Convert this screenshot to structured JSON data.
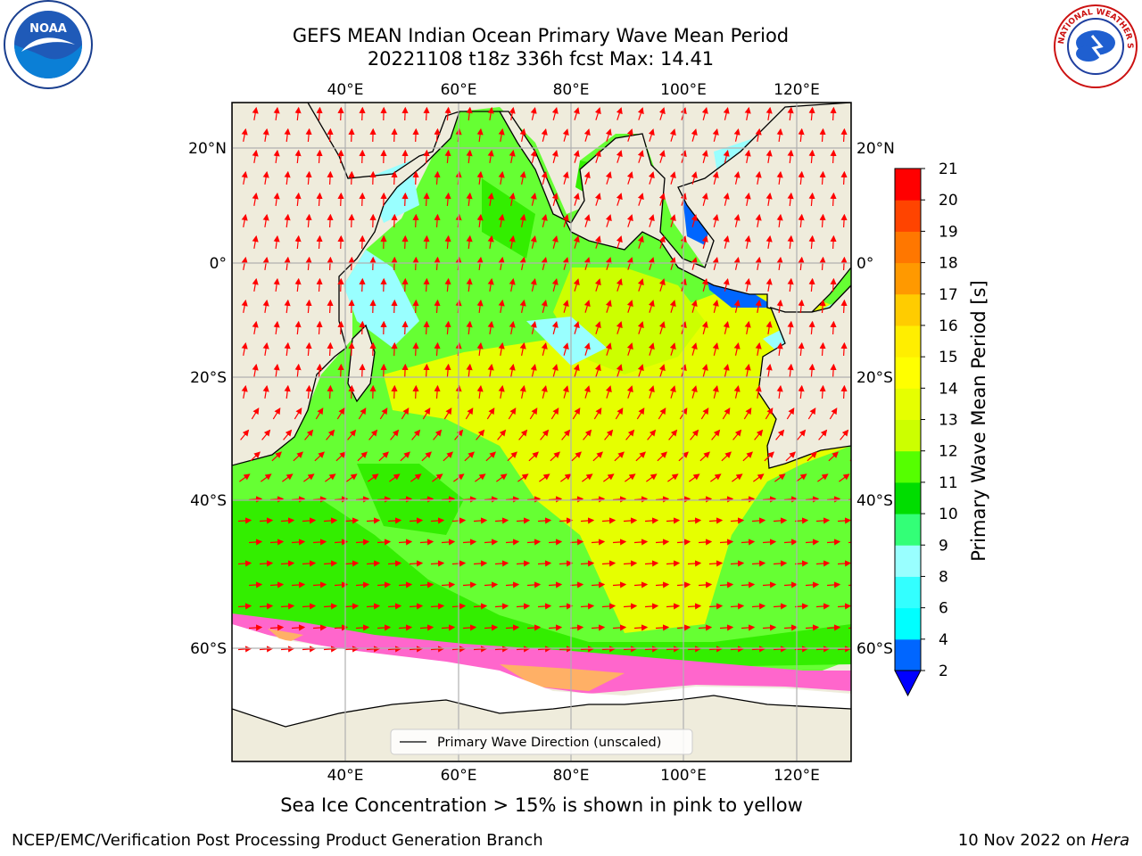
{
  "header": {
    "title_line1": "GEFS MEAN Indian Ocean Primary Wave Mean Period",
    "title_line2": "20221108 t18z 336h fcst   Max: 14.41"
  },
  "logos": {
    "left": {
      "name": "noaa-logo",
      "text": "NOAA"
    },
    "right": {
      "name": "nws-logo",
      "text": "NATIONAL WEATHER SERVICE"
    }
  },
  "map": {
    "lon_labels": [
      "40°E",
      "60°E",
      "80°E",
      "100°E",
      "120°E"
    ],
    "lat_labels": [
      "20°N",
      "0°",
      "20°S",
      "40°S",
      "60°S"
    ],
    "legend_label": "Primary Wave Direction (unscaled)",
    "colors": {
      "land": "#efecdc",
      "ice_pink": "#ff66cc",
      "ice_orange": "#ffb066",
      "arrows": "#ff0000"
    }
  },
  "colorbar": {
    "label": "Primary Wave Mean Period [s]",
    "ticks": [
      "2",
      "4",
      "6",
      "8",
      "9",
      "10",
      "11",
      "12",
      "13",
      "14",
      "15",
      "16",
      "17",
      "18",
      "19",
      "20",
      "21"
    ],
    "colors": [
      "#0066ff",
      "#00ffff",
      "#33ffff",
      "#99ffff",
      "#33ff77",
      "#00dd00",
      "#55ff00",
      "#ccff00",
      "#e6ff00",
      "#ffff00",
      "#ffee00",
      "#ffcc00",
      "#ff9900",
      "#ff7700",
      "#ff4400",
      "#ff0000"
    ],
    "extend_color": "#0000ff"
  },
  "notes": {
    "sea_ice": "Sea Ice Concentration > 15% is shown in pink to yellow"
  },
  "footer": {
    "left": "NCEP/EMC/Verification Post Processing Product Generation Branch",
    "date": "10 Nov 2022 on ",
    "machine": "Hera"
  }
}
